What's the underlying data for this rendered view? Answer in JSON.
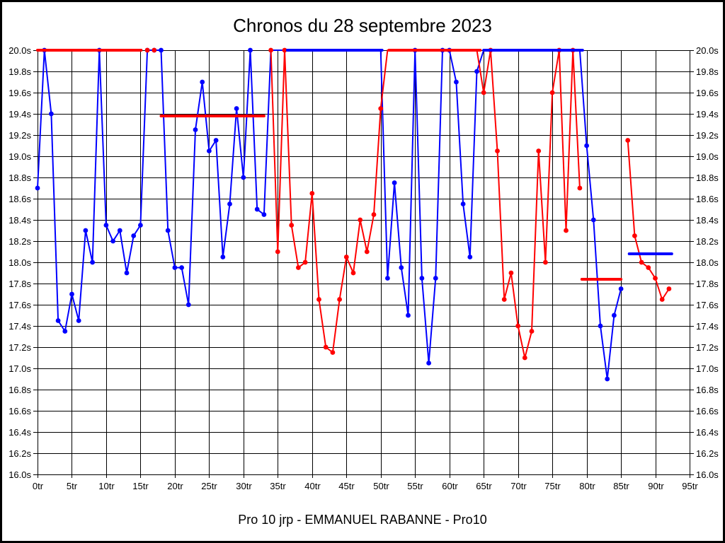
{
  "window": {
    "title": "Chronos du 28 septembre 2023",
    "footer": "Pro 10 jrp - EMMANUEL RABANNE - Pro10"
  },
  "chart_data": {
    "type": "line",
    "title": "Chronos du 28 septembre 2023",
    "footer": "Pro 10 jrp - EMMANUEL RABANNE - Pro10",
    "x_unit": "tr",
    "y_unit": "s",
    "xlim": [
      0,
      95
    ],
    "ylim": [
      16.0,
      20.0
    ],
    "x_tick_step": 5,
    "y_tick_step": 0.2,
    "grid": true,
    "legend_position": "none",
    "x_tick_labels": [
      "0tr",
      "5tr",
      "10tr",
      "15tr",
      "20tr",
      "25tr",
      "30tr",
      "35tr",
      "40tr",
      "45tr",
      "50tr",
      "55tr",
      "60tr",
      "65tr",
      "70tr",
      "75tr",
      "80tr",
      "85tr",
      "90tr",
      "95tr"
    ],
    "y_tick_labels": [
      "20.0s",
      "19.8s",
      "19.6s",
      "19.4s",
      "19.2s",
      "19.0s",
      "18.8s",
      "18.6s",
      "18.4s",
      "18.2s",
      "18.0s",
      "17.8s",
      "17.6s",
      "17.4s",
      "17.2s",
      "17.0s",
      "16.8s",
      "16.6s",
      "16.4s",
      "16.2s",
      "16.0s"
    ],
    "series": [
      {
        "name": "blue-driver",
        "color": "#0000ff",
        "marker_hidden_lap_ranges": [
          [
            34,
            50
          ],
          [
            65,
            79
          ]
        ],
        "segments": [
          {
            "start_lap": 0,
            "values": [
              18.7,
              20.0,
              19.4,
              17.45,
              17.35,
              17.7,
              17.45,
              18.3,
              18.0,
              20.0,
              18.35,
              18.2,
              18.3,
              17.9,
              18.25,
              18.35,
              20.0,
              20.0,
              20.0,
              18.3,
              17.95,
              17.95,
              17.6,
              19.25,
              19.7,
              19.05,
              19.15,
              18.05,
              18.55,
              19.45,
              18.8,
              20.0,
              18.5,
              18.45,
              20.0,
              20.0,
              20.0,
              20.0,
              20.0,
              20.0,
              20.0,
              20.0,
              20.0,
              20.0,
              20.0,
              20.0,
              20.0,
              20.0,
              20.0,
              20.0,
              20.0,
              17.85,
              18.75,
              17.95,
              17.5,
              20.0,
              17.85,
              17.05,
              17.85,
              20.0,
              20.0,
              19.7,
              18.55,
              18.05,
              19.8,
              20.0,
              20.0,
              20.0,
              20.0,
              20.0,
              20.0,
              20.0,
              20.0,
              20.0,
              20.0,
              20.0,
              20.0,
              20.0,
              20.0,
              20.0,
              19.1,
              18.4,
              17.4,
              16.9,
              17.5,
              17.75
            ]
          }
        ]
      },
      {
        "name": "red-driver",
        "color": "#ff0000",
        "marker_hidden_lap_ranges": [
          [
            0,
            15
          ],
          [
            51,
            64
          ]
        ],
        "segments": [
          {
            "start_lap": 0,
            "values": [
              20.0,
              20.0,
              20.0,
              20.0,
              20.0,
              20.0,
              20.0,
              20.0,
              20.0,
              20.0,
              20.0,
              20.0,
              20.0,
              20.0,
              20.0,
              20.0
            ]
          },
          {
            "start_lap": 16,
            "values": [
              20.0
            ]
          },
          {
            "start_lap": 17,
            "values": [
              20.0
            ]
          },
          {
            "start_lap": 34,
            "values": [
              20.0,
              18.1,
              20.0,
              18.35,
              17.95,
              18.0,
              18.65,
              17.65,
              17.2,
              17.15,
              17.65,
              18.05,
              17.9,
              18.4,
              18.1,
              18.45,
              19.45,
              20.0,
              20.0,
              20.0,
              20.0,
              20.0,
              20.0,
              20.0,
              20.0,
              20.0,
              20.0,
              20.0,
              20.0,
              20.0,
              20.0,
              19.6,
              20.0,
              19.05,
              17.65,
              17.9,
              17.4,
              17.1,
              17.35,
              19.05,
              18.0,
              19.6,
              20.0,
              18.3,
              20.0,
              18.7
            ]
          },
          {
            "start_lap": 86,
            "values": [
              19.15,
              18.25,
              18.0,
              17.95,
              17.85,
              17.65,
              17.75
            ]
          }
        ]
      }
    ],
    "average_lines": [
      {
        "name": "red-average-run1",
        "color": "#ff0000",
        "value": 20.0,
        "from_lap": 0,
        "to_lap": 15.1
      },
      {
        "name": "red-average-run2",
        "color": "#ff0000",
        "value": 19.38,
        "from_lap": 18.0,
        "to_lap": 33.0
      },
      {
        "name": "blue-average-run3",
        "color": "#0000ff",
        "value": 20.0,
        "from_lap": 36.4,
        "to_lap": 50.2
      },
      {
        "name": "red-average-run4",
        "color": "#ff0000",
        "value": 20.0,
        "from_lap": 51.2,
        "to_lap": 64.5
      },
      {
        "name": "blue-average-run5",
        "color": "#0000ff",
        "value": 20.0,
        "from_lap": 65.0,
        "to_lap": 79.4
      },
      {
        "name": "red-average-run6",
        "color": "#ff0000",
        "value": 17.84,
        "from_lap": 79.3,
        "to_lap": 85.0
      },
      {
        "name": "blue-average-run7",
        "color": "#0000ff",
        "value": 18.08,
        "from_lap": 86.2,
        "to_lap": 92.4
      }
    ]
  }
}
